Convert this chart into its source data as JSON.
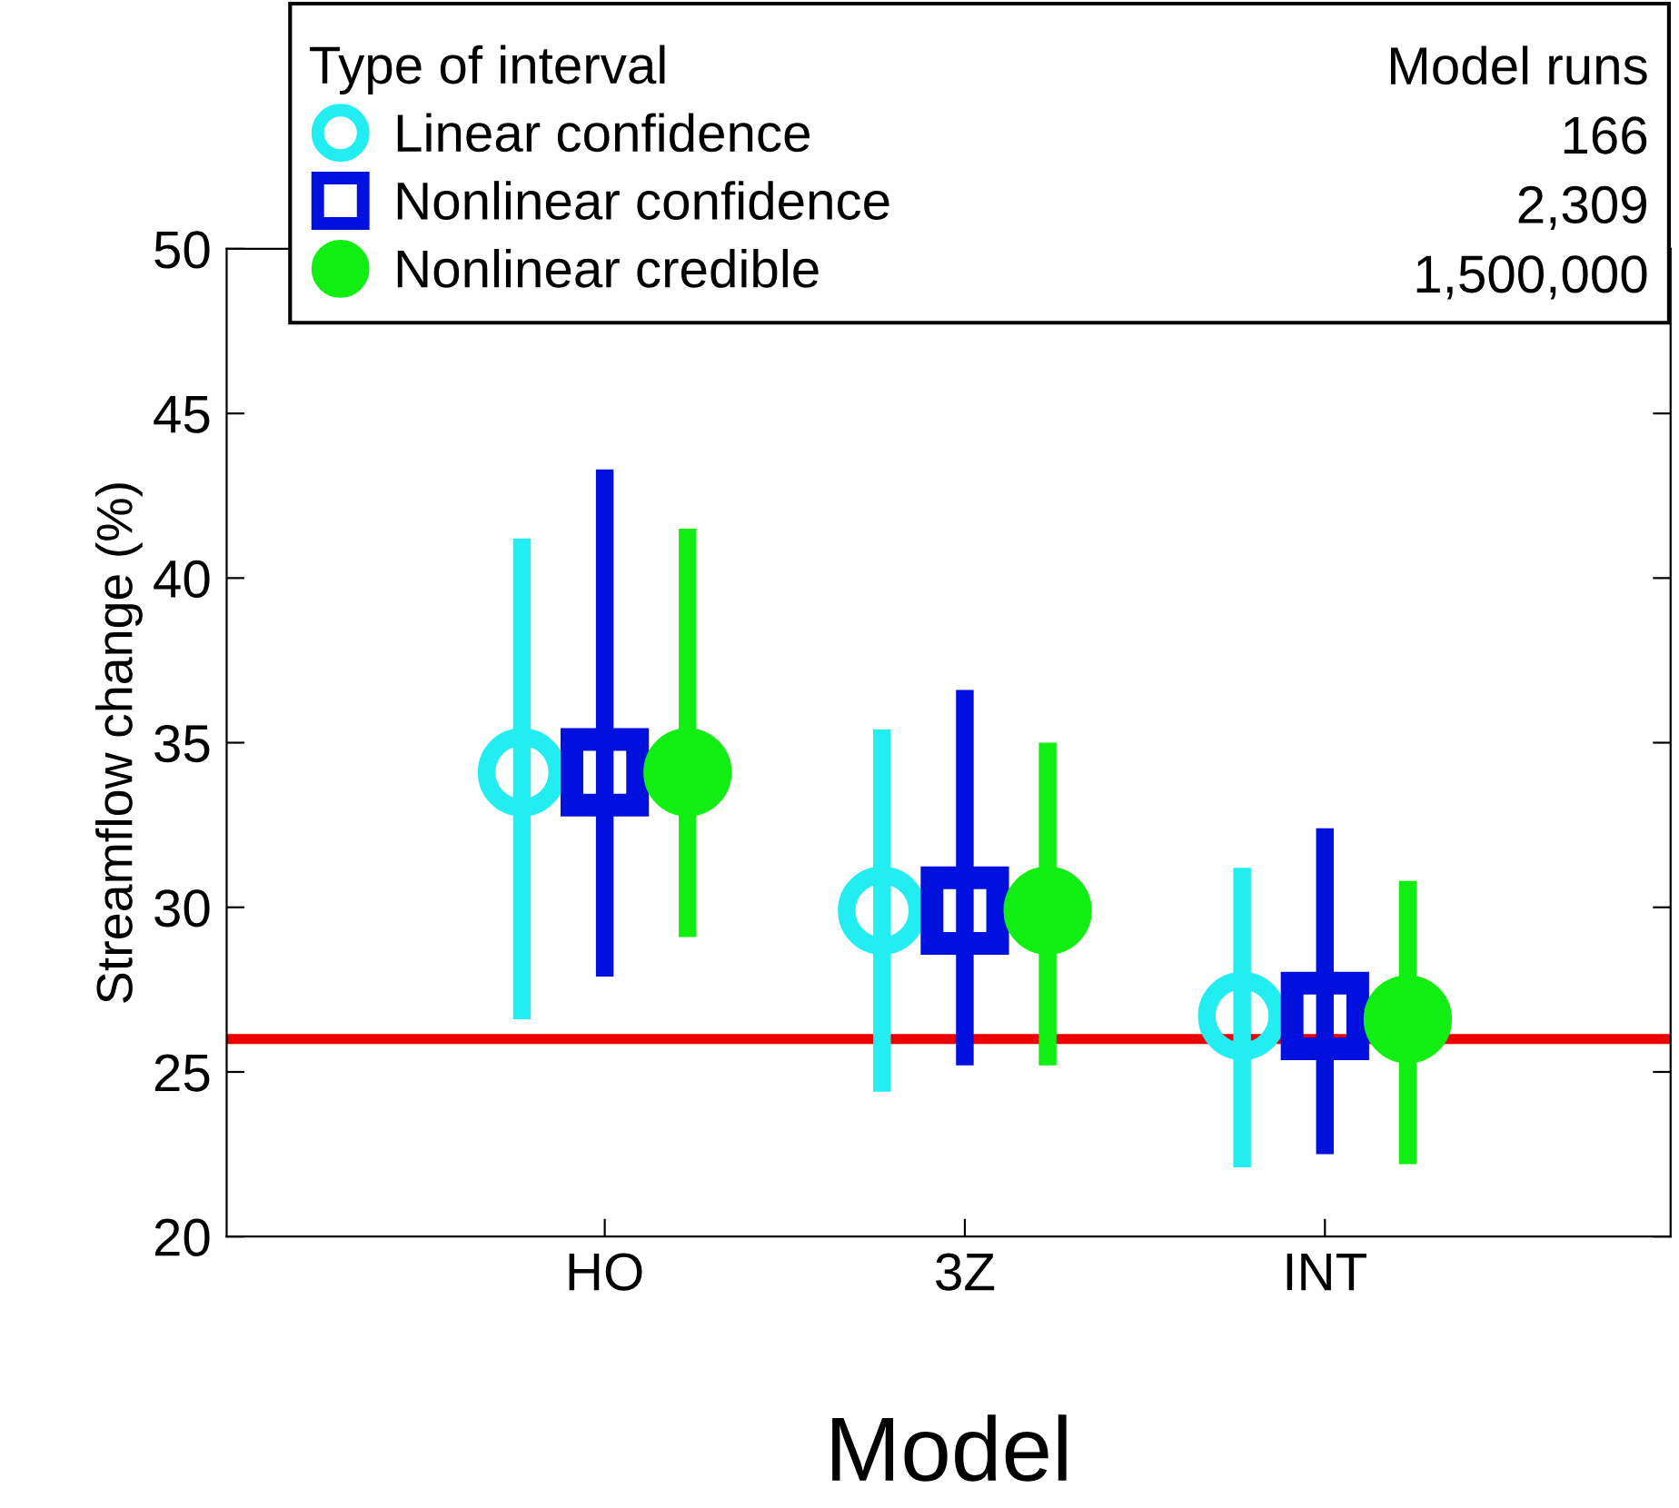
{
  "chart_data": {
    "type": "scatter",
    "xlabel": "Model",
    "ylabel": "Streamflow change (%)",
    "legend_title": "Type of interval",
    "categories": [
      "HO",
      "3Z",
      "INT"
    ],
    "series": [
      {
        "name": "Linear confidence",
        "color": "#22eef2",
        "marker": "circle",
        "values": [
          34.1,
          29.9,
          26.7
        ],
        "errors": [
          [
            26.6,
            41.2
          ],
          [
            24.4,
            35.4
          ],
          [
            22.1,
            31.2
          ]
        ]
      },
      {
        "name": "Nonlinear confidence",
        "color": "#0010dd",
        "marker": "square",
        "values": [
          34.1,
          29.9,
          26.7
        ],
        "errors": [
          [
            27.9,
            43.3
          ],
          [
            25.2,
            36.6
          ],
          [
            22.5,
            32.4
          ]
        ]
      },
      {
        "name": "Nonlinear credible",
        "color": "#11ee11",
        "marker": "circle",
        "values": [
          34.1,
          29.9,
          26.6
        ],
        "errors": [
          [
            29.1,
            41.5
          ],
          [
            25.2,
            35.0
          ],
          [
            22.2,
            30.8
          ]
        ]
      }
    ],
    "annotations": [
      "Model runs",
      "166",
      "2,309",
      "1,500,000"
    ],
    "ref_lines": [
      {
        "axis": "y",
        "value": 26,
        "color": "#ee0000"
      }
    ],
    "ylim": [
      20,
      50
    ],
    "yticks": [
      20,
      25,
      30,
      35,
      40,
      45,
      50
    ],
    "grid": false,
    "legend": "top"
  }
}
